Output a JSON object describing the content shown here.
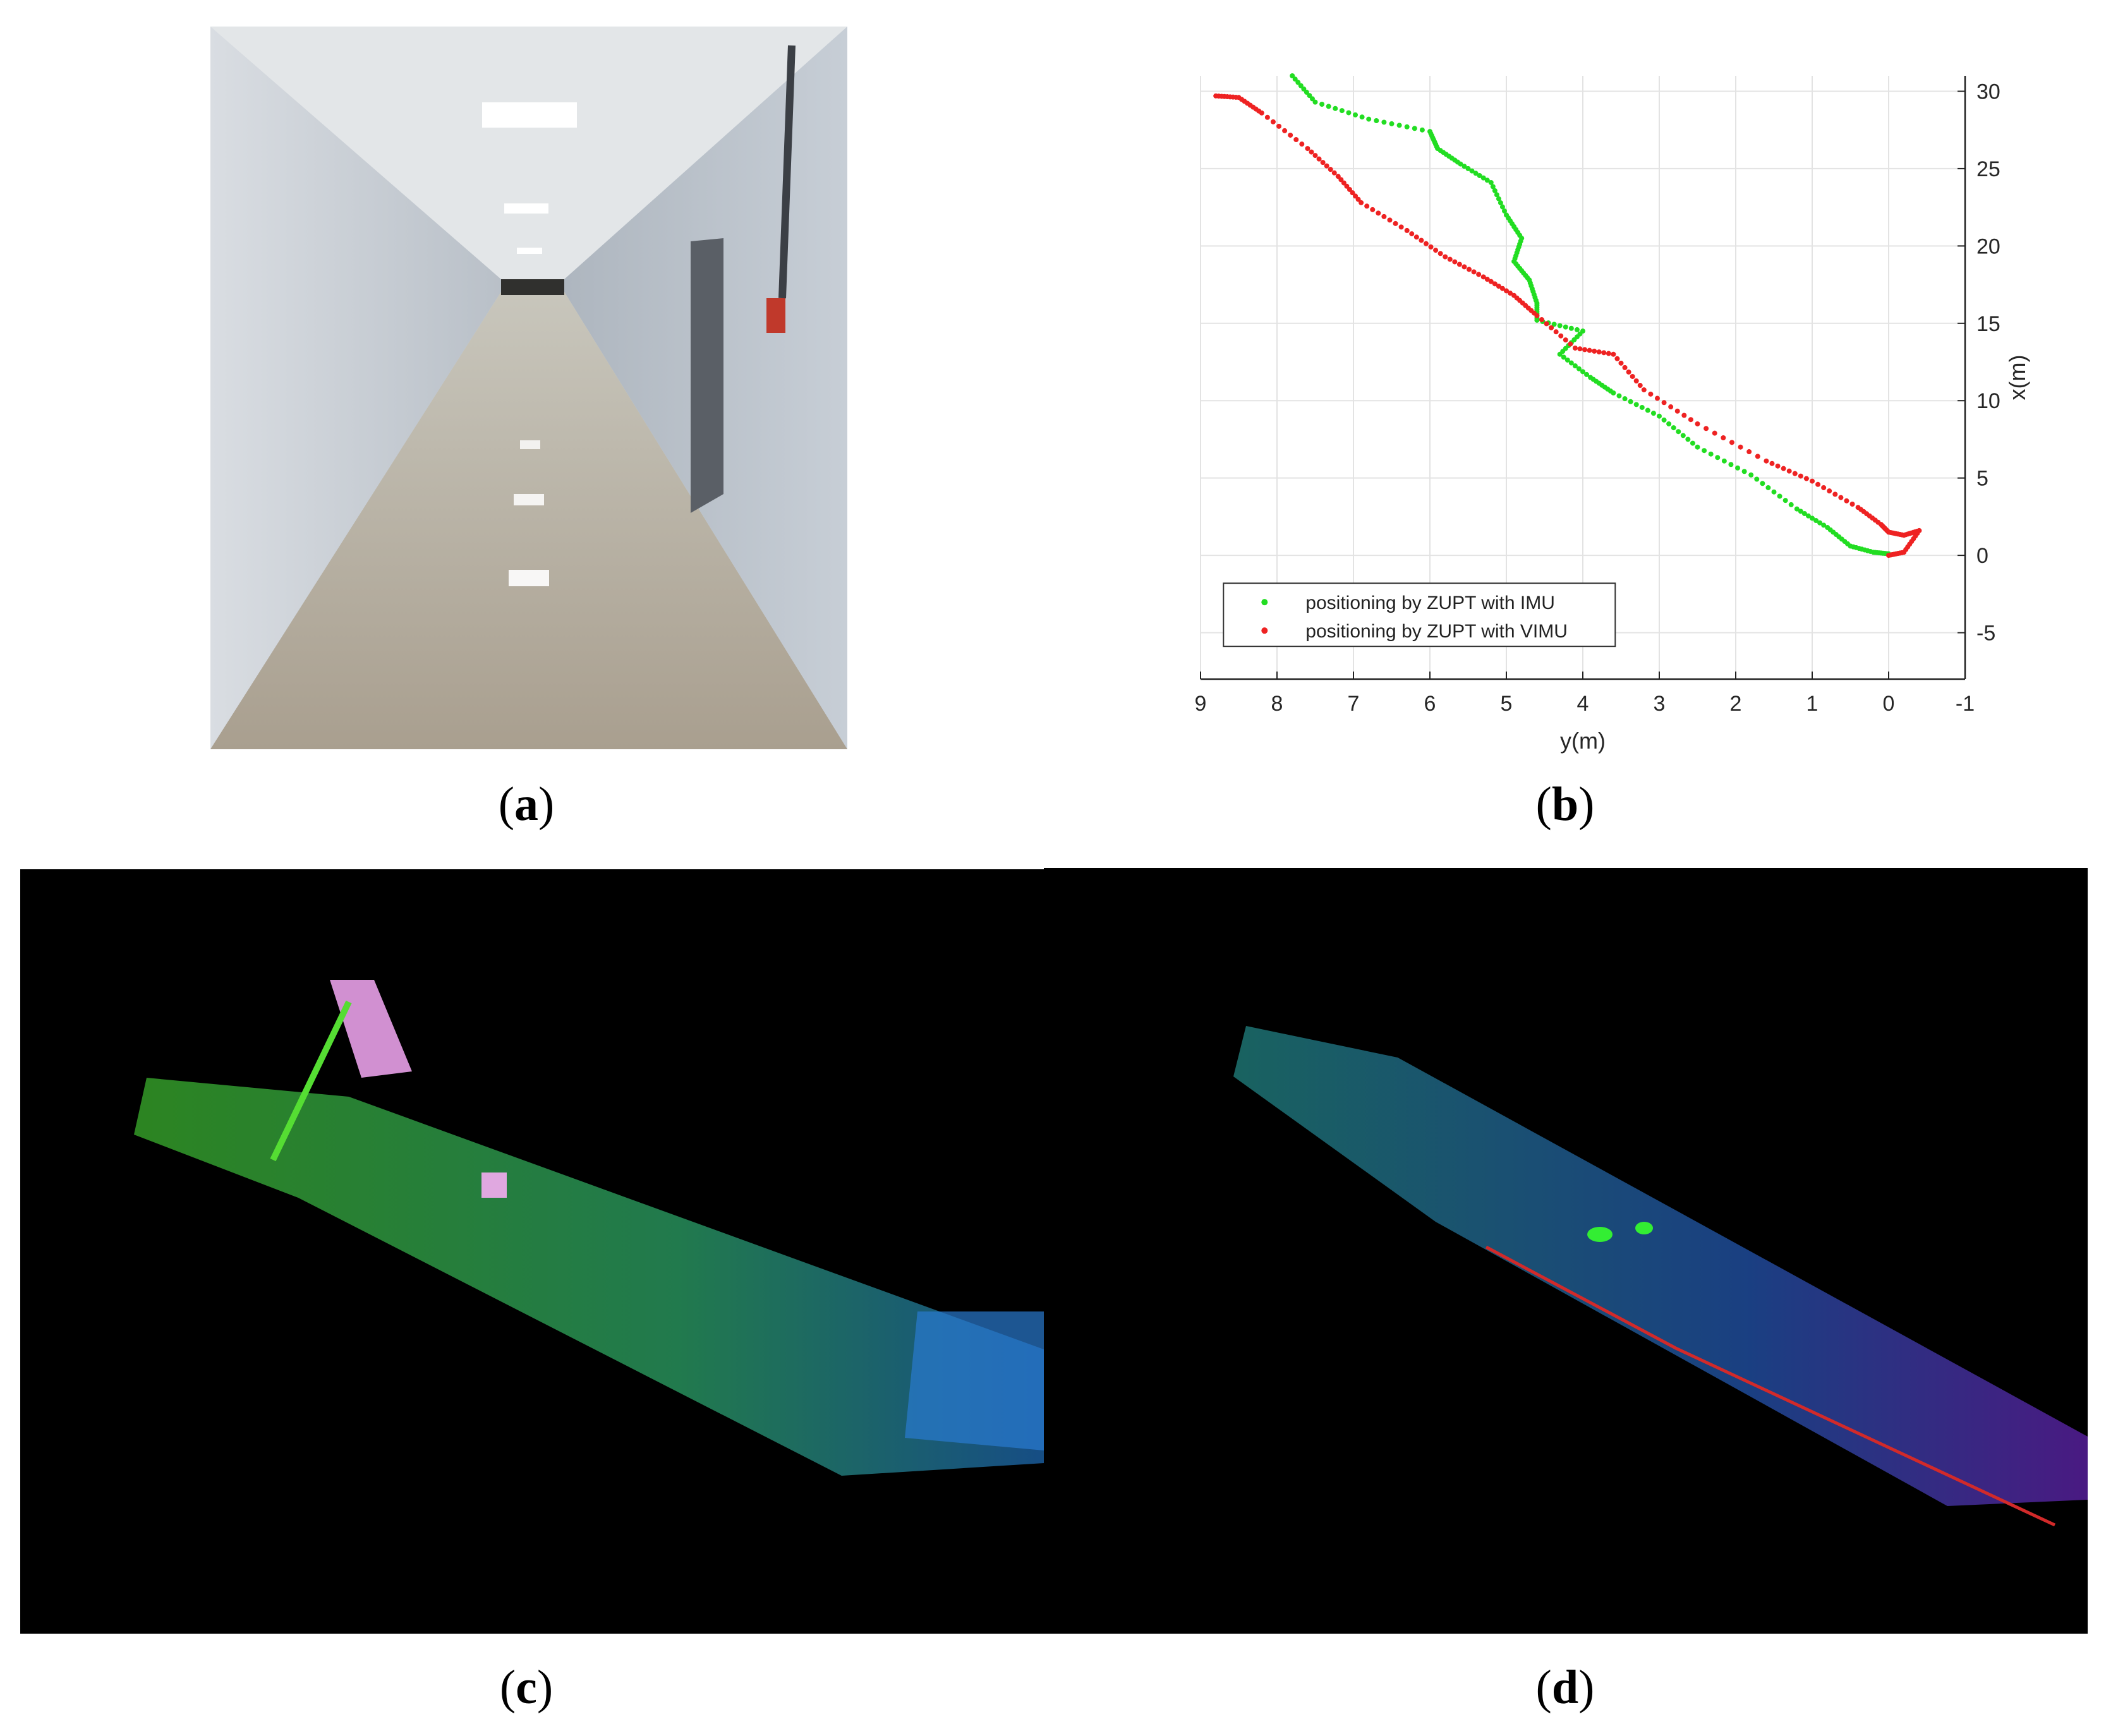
{
  "captions": {
    "a": "a",
    "b": "b",
    "c": "c",
    "d": "d"
  },
  "chart_data": {
    "type": "scatter",
    "xlabel": "y(m)",
    "ylabel": "x(m)",
    "xlim": [
      9,
      -1
    ],
    "ylim": [
      -8,
      31
    ],
    "x_ticks": [
      "9",
      "8",
      "7",
      "6",
      "5",
      "4",
      "3",
      "2",
      "1",
      "0",
      "-1"
    ],
    "y_ticks": [
      "30",
      "25",
      "20",
      "15",
      "10",
      "5",
      "0",
      "-5"
    ],
    "grid": true,
    "legend_position": "bottom-left",
    "series": [
      {
        "name": "positioning by ZUPT with IMU",
        "color": "#22dd22",
        "points": [
          [
            7.8,
            31
          ],
          [
            7.5,
            29.3
          ],
          [
            6.8,
            28.2
          ],
          [
            6.0,
            27.4
          ],
          [
            5.9,
            26.3
          ],
          [
            5.6,
            25.3
          ],
          [
            5.2,
            24.1
          ],
          [
            5.0,
            22.0
          ],
          [
            4.8,
            20.5
          ],
          [
            4.9,
            19.0
          ],
          [
            4.7,
            17.8
          ],
          [
            4.6,
            16.3
          ],
          [
            4.6,
            15.2
          ],
          [
            4.0,
            14.5
          ],
          [
            4.3,
            13.0
          ],
          [
            3.9,
            11.5
          ],
          [
            3.6,
            10.5
          ],
          [
            3.0,
            9.0
          ],
          [
            2.5,
            7.0
          ],
          [
            1.8,
            5.2
          ],
          [
            1.2,
            3.0
          ],
          [
            0.8,
            1.8
          ],
          [
            0.5,
            0.6
          ],
          [
            0.2,
            0.2
          ],
          [
            0.0,
            0.1
          ]
        ]
      },
      {
        "name": "positioning by ZUPT with VIMU",
        "color": "#ee2222",
        "points": [
          [
            8.8,
            29.7
          ],
          [
            8.5,
            29.6
          ],
          [
            8.2,
            28.6
          ],
          [
            7.6,
            26.3
          ],
          [
            7.2,
            24.5
          ],
          [
            6.9,
            22.8
          ],
          [
            6.3,
            21.0
          ],
          [
            5.8,
            19.3
          ],
          [
            5.3,
            18.0
          ],
          [
            4.9,
            16.8
          ],
          [
            4.6,
            15.5
          ],
          [
            4.1,
            13.4
          ],
          [
            3.6,
            13.0
          ],
          [
            3.2,
            10.7
          ],
          [
            2.5,
            8.5
          ],
          [
            1.6,
            6.1
          ],
          [
            1.0,
            4.8
          ],
          [
            0.4,
            3.1
          ],
          [
            0.1,
            2.0
          ],
          [
            0.0,
            1.5
          ],
          [
            -0.2,
            1.3
          ],
          [
            -0.4,
            1.6
          ],
          [
            -0.2,
            0.2
          ],
          [
            0.0,
            0.0
          ]
        ]
      }
    ]
  }
}
